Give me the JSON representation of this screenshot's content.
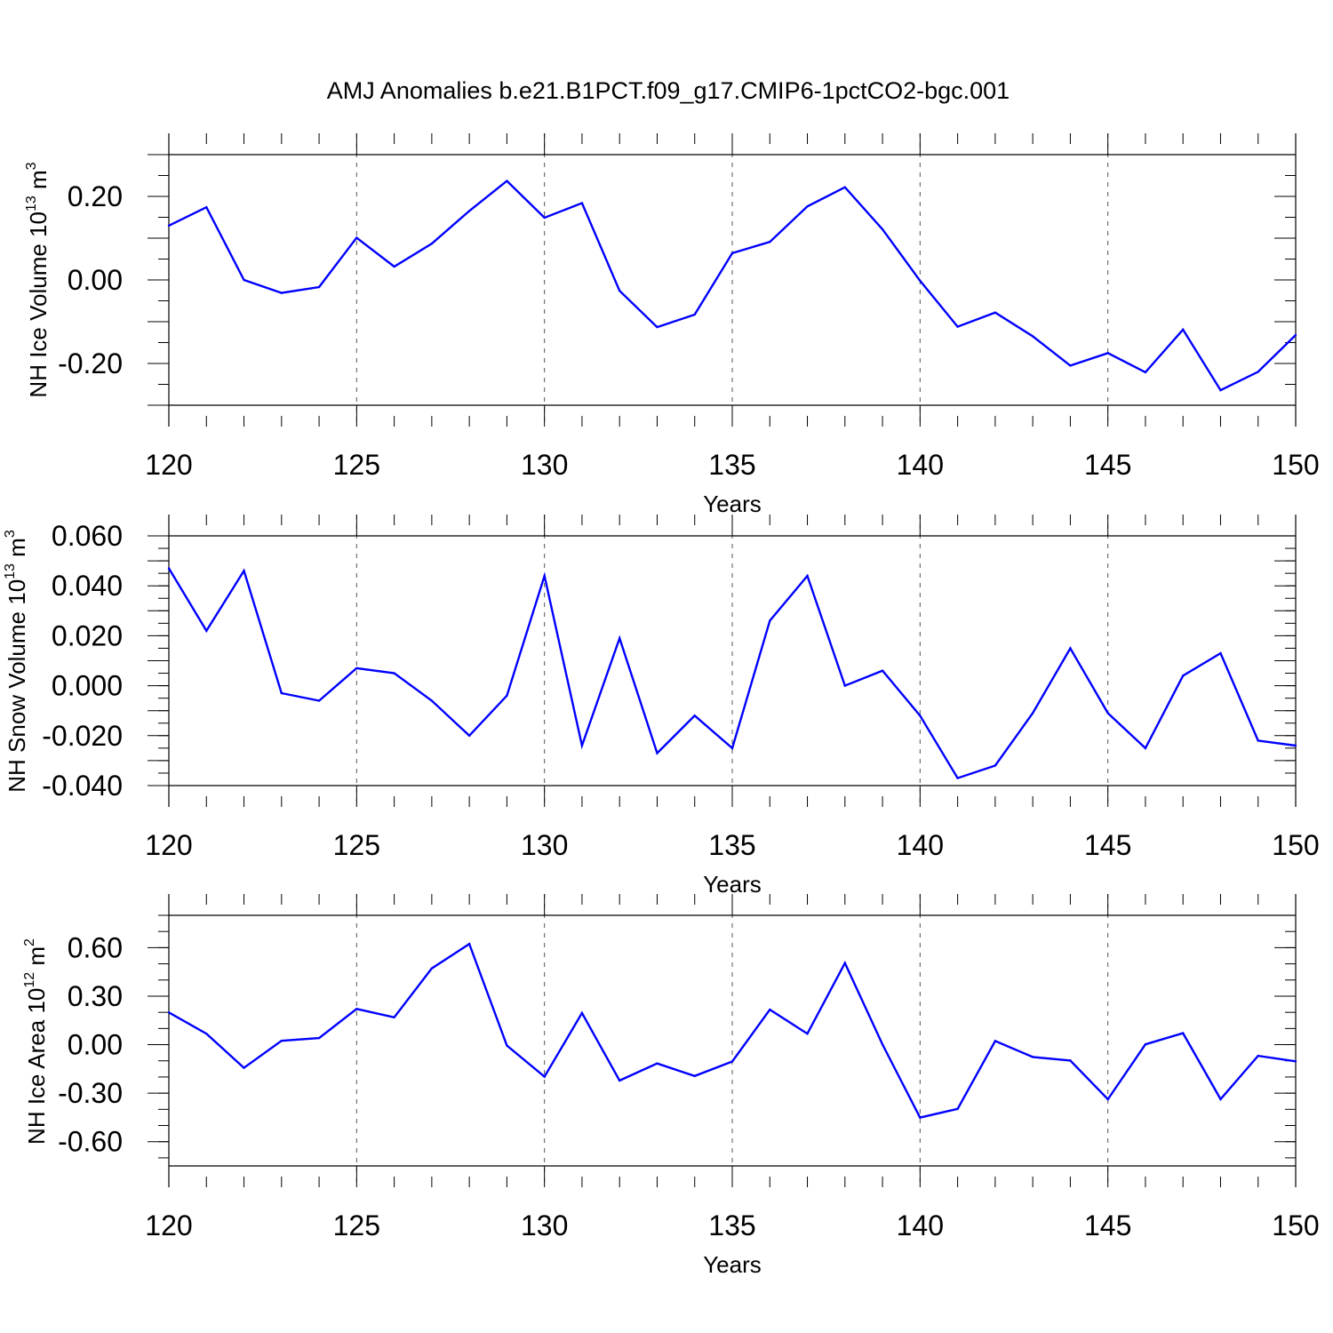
{
  "title": "AMJ Anomalies b.e21.B1PCT.f09_g17.CMIP6-1pctCO2-bgc.001",
  "colors": {
    "line": "#0000ff",
    "axis": "#000000",
    "grid": "#555555"
  },
  "chart_data": [
    {
      "type": "line",
      "xlabel": "Years",
      "ylabel": {
        "text": "NH Ice Volume 10",
        "sup": "13",
        "unit": " m",
        "unit_sup": "3"
      },
      "xlim": [
        120,
        150
      ],
      "ylim": [
        -0.3,
        0.3
      ],
      "xticks": [
        "120",
        "125",
        "130",
        "135",
        "140",
        "145",
        "150"
      ],
      "yticks": [
        {
          "v": -0.2,
          "label": "-0.20"
        },
        {
          "v": 0.0,
          "label": "0.00"
        },
        {
          "v": 0.2,
          "label": "0.20"
        }
      ],
      "ymajor": [
        -0.3,
        -0.2,
        -0.1,
        0.0,
        0.1,
        0.2,
        0.3
      ],
      "yminor_step": 0.05,
      "grid_x": [
        125,
        130,
        135,
        140,
        145
      ],
      "x": [
        120,
        121,
        122,
        123,
        124,
        125,
        126,
        127,
        128,
        129,
        130,
        131,
        132,
        133,
        134,
        135,
        136,
        137,
        138,
        139,
        140,
        141,
        142,
        143,
        144,
        145,
        146,
        147,
        148,
        149,
        150
      ],
      "values": [
        0.13,
        0.174,
        0.0,
        -0.031,
        -0.017,
        0.101,
        0.032,
        0.087,
        0.165,
        0.237,
        0.149,
        0.184,
        -0.026,
        -0.113,
        -0.083,
        0.064,
        0.091,
        0.176,
        0.222,
        0.121,
        -0.002,
        -0.112,
        -0.078,
        -0.135,
        -0.205,
        -0.175,
        -0.221,
        -0.119,
        -0.264,
        -0.22,
        -0.132
      ]
    },
    {
      "type": "line",
      "xlabel": "Years",
      "ylabel": {
        "text": "NH Snow Volume 10",
        "sup": "13",
        "unit": " m",
        "unit_sup": "3"
      },
      "xlim": [
        120,
        150
      ],
      "ylim": [
        -0.04,
        0.06
      ],
      "xticks": [
        "120",
        "125",
        "130",
        "135",
        "140",
        "145",
        "150"
      ],
      "yticks": [
        {
          "v": -0.04,
          "label": "-0.040"
        },
        {
          "v": -0.02,
          "label": "-0.020"
        },
        {
          "v": 0.0,
          "label": "0.000"
        },
        {
          "v": 0.02,
          "label": "0.020"
        },
        {
          "v": 0.04,
          "label": "0.040"
        },
        {
          "v": 0.06,
          "label": "0.060"
        }
      ],
      "ymajor": [
        -0.04,
        -0.03,
        -0.02,
        -0.01,
        0.0,
        0.01,
        0.02,
        0.03,
        0.04,
        0.05,
        0.06
      ],
      "yminor_step": 0.005,
      "grid_x": [
        125,
        130,
        135,
        140,
        145
      ],
      "x": [
        120,
        121,
        122,
        123,
        124,
        125,
        126,
        127,
        128,
        129,
        130,
        131,
        132,
        133,
        134,
        135,
        136,
        137,
        138,
        139,
        140,
        141,
        142,
        143,
        144,
        145,
        146,
        147,
        148,
        149,
        150
      ],
      "values": [
        0.047,
        0.022,
        0.046,
        -0.003,
        -0.006,
        0.007,
        0.005,
        -0.006,
        -0.02,
        -0.004,
        0.044,
        -0.024,
        0.019,
        -0.027,
        -0.012,
        -0.025,
        0.026,
        0.044,
        0.0,
        0.006,
        -0.012,
        -0.037,
        -0.032,
        -0.011,
        0.015,
        -0.011,
        -0.025,
        0.004,
        0.013,
        -0.022,
        -0.024
      ]
    },
    {
      "type": "line",
      "xlabel": "Years",
      "ylabel": {
        "text": "NH Ice Area 10",
        "sup": "12",
        "unit": " m",
        "unit_sup": "2"
      },
      "xlim": [
        120,
        150
      ],
      "ylim": [
        -0.75,
        0.8
      ],
      "xticks": [
        "120",
        "125",
        "130",
        "135",
        "140",
        "145",
        "150"
      ],
      "yticks": [
        {
          "v": -0.6,
          "label": "-0.60"
        },
        {
          "v": -0.3,
          "label": "-0.30"
        },
        {
          "v": 0.0,
          "label": "0.00"
        },
        {
          "v": 0.3,
          "label": "0.30"
        },
        {
          "v": 0.6,
          "label": "0.60"
        }
      ],
      "ymajor": [
        -0.6,
        -0.3,
        0.0,
        0.3,
        0.6
      ],
      "yminor_step": 0.1,
      "grid_x": [
        125,
        130,
        135,
        140,
        145
      ],
      "x": [
        120,
        121,
        122,
        123,
        124,
        125,
        126,
        127,
        128,
        129,
        130,
        131,
        132,
        133,
        134,
        135,
        136,
        137,
        138,
        139,
        140,
        141,
        142,
        143,
        144,
        145,
        146,
        147,
        148,
        149,
        150
      ],
      "values": [
        0.199,
        0.068,
        -0.143,
        0.024,
        0.041,
        0.221,
        0.169,
        0.472,
        0.623,
        -0.005,
        -0.198,
        0.196,
        -0.222,
        -0.116,
        -0.194,
        -0.104,
        0.217,
        0.068,
        0.505,
        0.001,
        -0.451,
        -0.397,
        0.023,
        -0.076,
        -0.098,
        -0.338,
        0.002,
        0.071,
        -0.337,
        -0.069,
        -0.103
      ]
    }
  ]
}
